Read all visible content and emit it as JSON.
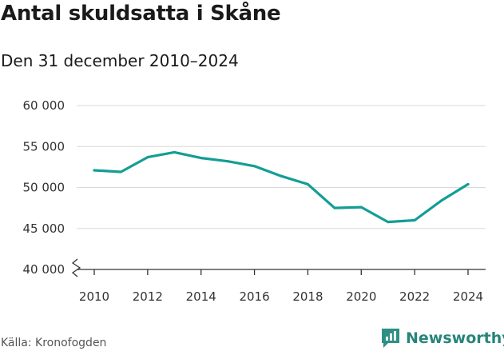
{
  "chart_data": {
    "type": "line",
    "title": "Antal skuldsatta i Skåne",
    "subtitle": "Den 31 december 2010–2024",
    "x": [
      2010,
      2011,
      2012,
      2013,
      2014,
      2015,
      2016,
      2017,
      2018,
      2019,
      2020,
      2021,
      2022,
      2023,
      2024
    ],
    "series": [
      {
        "values": [
          52100,
          51900,
          53700,
          54300,
          53600,
          53200,
          52600,
          51400,
          50400,
          47500,
          47600,
          45800,
          46000,
          48400,
          50400
        ]
      }
    ],
    "x_ticks": [
      2010,
      2012,
      2014,
      2016,
      2018,
      2020,
      2022,
      2024
    ],
    "y_ticks": [
      40000,
      45000,
      50000,
      55000,
      60000
    ],
    "y_tick_labels": [
      "40 000",
      "45 000",
      "50 000",
      "55 000",
      "60 000"
    ],
    "xlim": [
      2010,
      2024
    ],
    "ylim": [
      40000,
      60000
    ],
    "y_axis_break": true,
    "grid": "horizontal",
    "line_color": "#129e95"
  },
  "footer": {
    "source": "Källa: Kronofogden",
    "brand": "Newsworthy",
    "brand_icon": "newsworthy-logo-icon",
    "brand_color": "#27857a"
  }
}
